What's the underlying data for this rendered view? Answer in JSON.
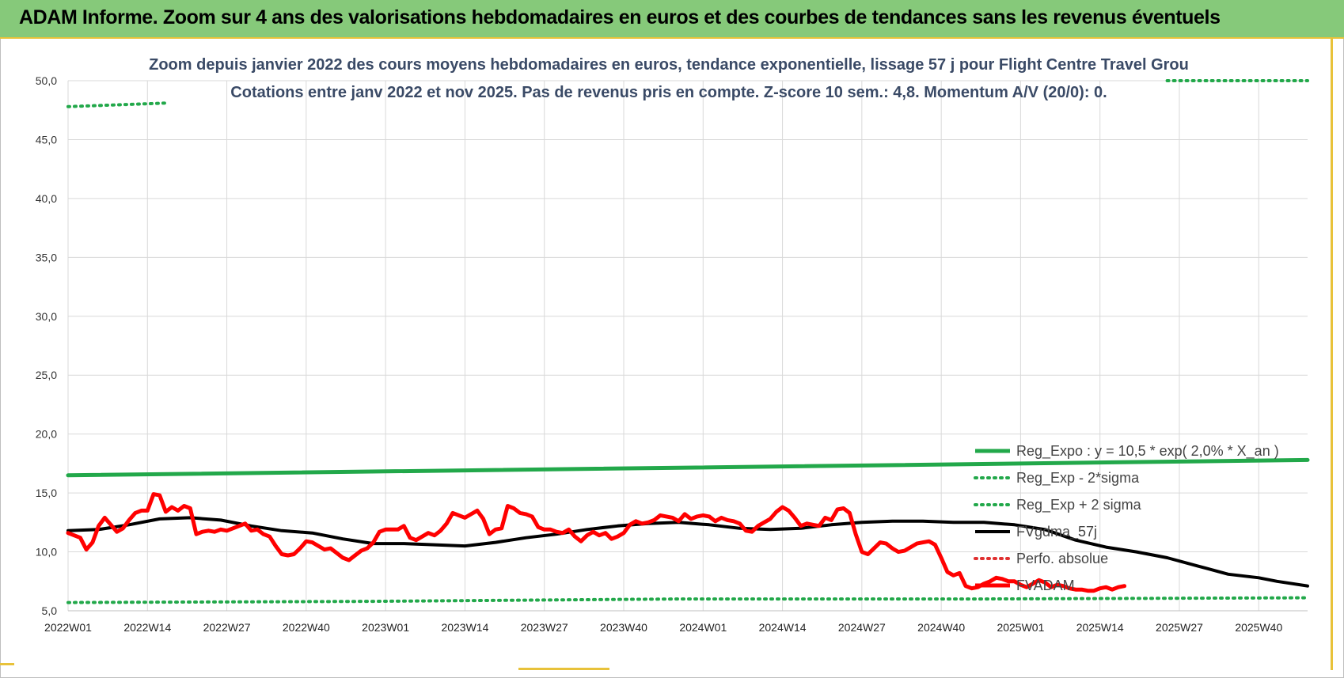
{
  "banner": {
    "title": "ADAM Informe. Zoom sur 4 ans des valorisations hebdomadaires en euros et des courbes de tendances sans les revenus éventuels"
  },
  "colors": {
    "banner_bg": "#86c97a",
    "reg_expo": "#22a84a",
    "sigma_band": "#22a84a",
    "fvgdma": "#000000",
    "fvadam": "#ff0000",
    "perfo": "#e03030"
  },
  "chart_data": {
    "type": "line",
    "subtitle_line1": "Zoom depuis janvier 2022 des cours moyens hebdomadaires en euros, tendance exponentielle, lissage 57 j pour Flight Centre Travel Grou",
    "subtitle_line2": "Cotations entre janv 2022 et nov 2025. Pas de revenus pris en compte. Z-score 10 sem.: 4,8. Momentum A/V (20/0): 0.",
    "y_ticks": [
      "5,0",
      "10,0",
      "15,0",
      "20,0",
      "25,0",
      "30,0",
      "35,0",
      "40,0",
      "45,0",
      "50,0"
    ],
    "ylim": [
      5,
      50
    ],
    "x_tick_labels": [
      "2022W01",
      "2022W14",
      "2022W27",
      "2022W40",
      "2023W01",
      "2023W14",
      "2023W27",
      "2023W40",
      "2024W01",
      "2024W14",
      "2024W27",
      "2024W40",
      "2025W01",
      "2025W14",
      "2025W27",
      "2025W40"
    ],
    "x_tick_weeks": [
      0,
      13,
      26,
      39,
      52,
      65,
      78,
      91,
      104,
      117,
      130,
      143,
      156,
      169,
      182,
      195
    ],
    "week_count": 204,
    "grid": "on",
    "legend_position": "bottom-right",
    "series": [
      {
        "name": "Reg_Expo : y = 10,5 * exp( 2,0% * X_an )",
        "style": "solid-green",
        "points": [
          [
            0,
            16.5
          ],
          [
            203,
            17.8
          ]
        ]
      },
      {
        "name": "Reg_Exp - 2*sigma",
        "style": "dotted-green",
        "points": [
          [
            0,
            5.7
          ],
          [
            50,
            5.8
          ],
          [
            100,
            6.0
          ],
          [
            150,
            6.0
          ],
          [
            203,
            6.1
          ]
        ]
      },
      {
        "name": "Reg_Exp + 2 sigma",
        "style": "dotted-green",
        "points": [
          [
            0,
            47.8
          ],
          [
            16,
            48.1
          ],
          [
            null,
            null
          ],
          [
            180,
            50.0
          ],
          [
            203,
            50.0
          ]
        ]
      },
      {
        "name": "FVgdma_57j",
        "style": "solid-black",
        "points": [
          [
            0,
            11.8
          ],
          [
            5,
            11.9
          ],
          [
            10,
            12.3
          ],
          [
            15,
            12.8
          ],
          [
            20,
            12.9
          ],
          [
            25,
            12.7
          ],
          [
            30,
            12.2
          ],
          [
            35,
            11.8
          ],
          [
            40,
            11.6
          ],
          [
            45,
            11.1
          ],
          [
            50,
            10.7
          ],
          [
            55,
            10.7
          ],
          [
            60,
            10.6
          ],
          [
            65,
            10.5
          ],
          [
            70,
            10.8
          ],
          [
            75,
            11.2
          ],
          [
            80,
            11.5
          ],
          [
            85,
            11.9
          ],
          [
            90,
            12.2
          ],
          [
            95,
            12.4
          ],
          [
            100,
            12.5
          ],
          [
            105,
            12.3
          ],
          [
            110,
            12.0
          ],
          [
            115,
            11.9
          ],
          [
            120,
            12.0
          ],
          [
            125,
            12.3
          ],
          [
            130,
            12.5
          ],
          [
            135,
            12.6
          ],
          [
            140,
            12.6
          ],
          [
            145,
            12.5
          ],
          [
            150,
            12.5
          ],
          [
            155,
            12.3
          ],
          [
            160,
            11.9
          ],
          [
            165,
            11.0
          ],
          [
            170,
            10.4
          ],
          [
            175,
            10.0
          ],
          [
            180,
            9.5
          ],
          [
            185,
            8.8
          ],
          [
            190,
            8.1
          ],
          [
            195,
            7.8
          ],
          [
            198,
            7.5
          ],
          [
            203,
            7.1
          ]
        ]
      },
      {
        "name": "Perfo. absolue",
        "style": "dotted-red",
        "points": []
      },
      {
        "name": "FVADAM",
        "style": "solid-red",
        "points": [
          [
            0,
            11.6
          ],
          [
            2,
            11.2
          ],
          [
            3,
            10.2
          ],
          [
            4,
            10.8
          ],
          [
            5,
            12.2
          ],
          [
            6,
            12.9
          ],
          [
            7,
            12.3
          ],
          [
            8,
            11.7
          ],
          [
            9,
            12.0
          ],
          [
            10,
            12.7
          ],
          [
            11,
            13.3
          ],
          [
            12,
            13.5
          ],
          [
            13,
            13.5
          ],
          [
            14,
            14.9
          ],
          [
            15,
            14.8
          ],
          [
            16,
            13.4
          ],
          [
            17,
            13.8
          ],
          [
            18,
            13.5
          ],
          [
            19,
            13.9
          ],
          [
            20,
            13.7
          ],
          [
            21,
            11.5
          ],
          [
            22,
            11.7
          ],
          [
            23,
            11.8
          ],
          [
            24,
            11.7
          ],
          [
            25,
            11.9
          ],
          [
            26,
            11.8
          ],
          [
            28,
            12.2
          ],
          [
            29,
            12.4
          ],
          [
            30,
            11.8
          ],
          [
            31,
            11.9
          ],
          [
            32,
            11.5
          ],
          [
            33,
            11.3
          ],
          [
            34,
            10.5
          ],
          [
            35,
            9.8
          ],
          [
            36,
            9.7
          ],
          [
            37,
            9.8
          ],
          [
            38,
            10.3
          ],
          [
            39,
            10.9
          ],
          [
            40,
            10.8
          ],
          [
            41,
            10.5
          ],
          [
            42,
            10.2
          ],
          [
            43,
            10.3
          ],
          [
            44,
            9.9
          ],
          [
            45,
            9.5
          ],
          [
            46,
            9.3
          ],
          [
            47,
            9.7
          ],
          [
            48,
            10.1
          ],
          [
            49,
            10.3
          ],
          [
            50,
            10.8
          ],
          [
            51,
            11.7
          ],
          [
            52,
            11.9
          ],
          [
            53,
            11.9
          ],
          [
            54,
            11.9
          ],
          [
            55,
            12.2
          ],
          [
            56,
            11.2
          ],
          [
            57,
            11.0
          ],
          [
            58,
            11.3
          ],
          [
            59,
            11.6
          ],
          [
            60,
            11.4
          ],
          [
            61,
            11.8
          ],
          [
            62,
            12.4
          ],
          [
            63,
            13.3
          ],
          [
            64,
            13.1
          ],
          [
            65,
            12.9
          ],
          [
            66,
            13.2
          ],
          [
            67,
            13.5
          ],
          [
            68,
            12.8
          ],
          [
            69,
            11.5
          ],
          [
            70,
            11.9
          ],
          [
            71,
            12.0
          ],
          [
            72,
            13.9
          ],
          [
            73,
            13.7
          ],
          [
            74,
            13.3
          ],
          [
            75,
            13.2
          ],
          [
            76,
            13.0
          ],
          [
            77,
            12.1
          ],
          [
            78,
            11.9
          ],
          [
            79,
            11.9
          ],
          [
            80,
            11.7
          ],
          [
            81,
            11.6
          ],
          [
            82,
            11.9
          ],
          [
            83,
            11.3
          ],
          [
            84,
            10.9
          ],
          [
            85,
            11.4
          ],
          [
            86,
            11.7
          ],
          [
            87,
            11.4
          ],
          [
            88,
            11.6
          ],
          [
            89,
            11.1
          ],
          [
            90,
            11.3
          ],
          [
            91,
            11.6
          ],
          [
            92,
            12.3
          ],
          [
            93,
            12.6
          ],
          [
            94,
            12.4
          ],
          [
            95,
            12.5
          ],
          [
            96,
            12.7
          ],
          [
            97,
            13.1
          ],
          [
            98,
            13.0
          ],
          [
            99,
            12.9
          ],
          [
            100,
            12.6
          ],
          [
            101,
            13.2
          ],
          [
            102,
            12.8
          ],
          [
            103,
            13.0
          ],
          [
            104,
            13.1
          ],
          [
            105,
            13.0
          ],
          [
            106,
            12.6
          ],
          [
            107,
            12.9
          ],
          [
            108,
            12.7
          ],
          [
            109,
            12.6
          ],
          [
            110,
            12.4
          ],
          [
            111,
            11.8
          ],
          [
            112,
            11.7
          ],
          [
            113,
            12.2
          ],
          [
            114,
            12.5
          ],
          [
            115,
            12.8
          ],
          [
            116,
            13.4
          ],
          [
            117,
            13.8
          ],
          [
            118,
            13.5
          ],
          [
            119,
            12.9
          ],
          [
            120,
            12.2
          ],
          [
            121,
            12.4
          ],
          [
            122,
            12.3
          ],
          [
            123,
            12.2
          ],
          [
            124,
            12.9
          ],
          [
            125,
            12.7
          ],
          [
            126,
            13.6
          ],
          [
            127,
            13.7
          ],
          [
            128,
            13.3
          ],
          [
            129,
            11.5
          ],
          [
            130,
            10.0
          ],
          [
            131,
            9.8
          ],
          [
            132,
            10.3
          ],
          [
            133,
            10.8
          ],
          [
            134,
            10.7
          ],
          [
            135,
            10.3
          ],
          [
            136,
            10.0
          ],
          [
            137,
            10.1
          ],
          [
            138,
            10.4
          ],
          [
            139,
            10.7
          ],
          [
            140,
            10.8
          ],
          [
            141,
            10.9
          ],
          [
            142,
            10.6
          ],
          [
            143,
            9.5
          ],
          [
            144,
            8.3
          ],
          [
            145,
            8.0
          ],
          [
            146,
            8.2
          ],
          [
            147,
            7.1
          ],
          [
            148,
            6.9
          ],
          [
            149,
            7.0
          ],
          [
            150,
            7.3
          ],
          [
            151,
            7.5
          ],
          [
            152,
            7.8
          ],
          [
            153,
            7.7
          ],
          [
            154,
            7.5
          ],
          [
            155,
            7.5
          ],
          [
            156,
            7.2
          ],
          [
            157,
            7.0
          ],
          [
            158,
            7.3
          ],
          [
            159,
            7.6
          ],
          [
            160,
            7.4
          ],
          [
            161,
            7.0
          ],
          [
            162,
            7.2
          ],
          [
            163,
            7.1
          ],
          [
            164,
            6.9
          ],
          [
            165,
            6.8
          ],
          [
            166,
            6.8
          ],
          [
            167,
            6.7
          ],
          [
            168,
            6.7
          ],
          [
            169,
            6.9
          ],
          [
            170,
            7.0
          ],
          [
            171,
            6.8
          ],
          [
            172,
            7.0
          ],
          [
            173,
            7.1
          ]
        ]
      }
    ]
  }
}
